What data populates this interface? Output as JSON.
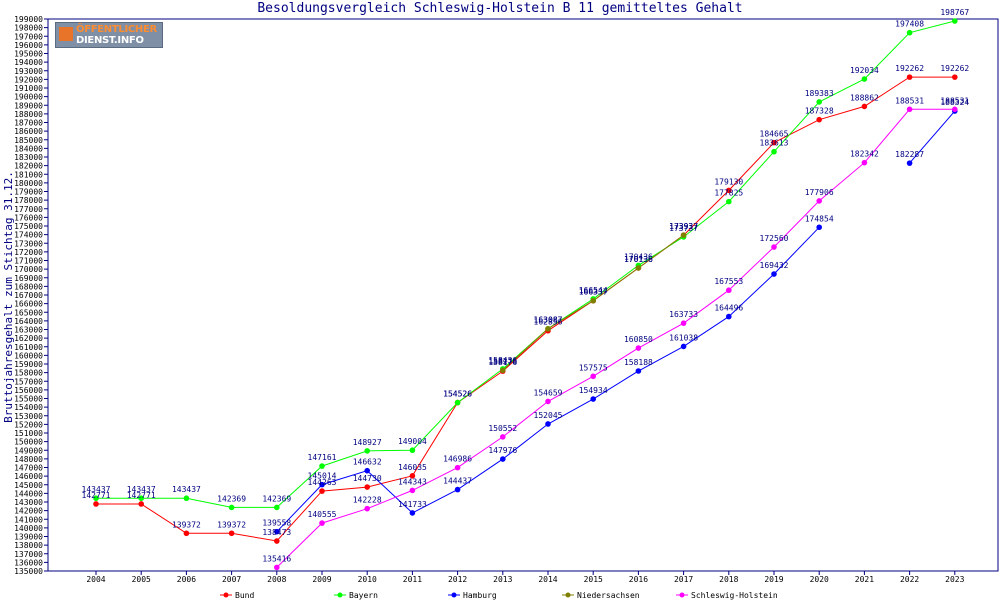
{
  "chart_data": {
    "type": "line",
    "title": "Besoldungsvergleich Schleswig-Holstein B 11 gemitteltes Gehalt",
    "ylabel": "Bruttojahresgehalt zum Stichtag 31.12.",
    "xlabel": "",
    "ylim": [
      135000,
      199000
    ],
    "y_tick_step": 1000,
    "grid": false,
    "legend_position": "bottom",
    "categories": [
      "2004",
      "2005",
      "2006",
      "2007",
      "2008",
      "2009",
      "2010",
      "2011",
      "2012",
      "2013",
      "2014",
      "2015",
      "2016",
      "2017",
      "2018",
      "2019",
      "2020",
      "2021",
      "2022",
      "2023"
    ],
    "series": [
      {
        "name": "Bund",
        "color": "#ff0000",
        "values": [
          142771,
          142771,
          139372,
          139372,
          138473,
          144263,
          144730,
          146035,
          154526,
          158176,
          162856,
          166337,
          170136,
          173937,
          179130,
          184665,
          187328,
          188862,
          192262,
          192262
        ]
      },
      {
        "name": "Bayern",
        "color": "#00ff00",
        "values": [
          143437,
          143437,
          143437,
          142369,
          142369,
          147161,
          148927,
          149004,
          154526,
          158436,
          163087,
          166544,
          170436,
          173737,
          177825,
          183613,
          189383,
          192034,
          197408,
          198767
        ]
      },
      {
        "name": "Hamburg",
        "color": "#0000ff",
        "values": [
          null,
          null,
          null,
          null,
          139558,
          145014,
          146632,
          141733,
          144437,
          147976,
          152045,
          154934,
          158188,
          161038,
          164496,
          169432,
          174854,
          null,
          182287,
          188324
        ]
      },
      {
        "name": "Niedersachsen",
        "color": "#808000",
        "values": [
          null,
          null,
          null,
          null,
          null,
          null,
          null,
          null,
          null,
          158276,
          163087,
          166337,
          170136,
          173937,
          null,
          null,
          null,
          null,
          null,
          null
        ]
      },
      {
        "name": "Schleswig-Holstein",
        "color": "#ff00ff",
        "values": [
          null,
          null,
          null,
          null,
          135416,
          140555,
          142228,
          144343,
          146986,
          150552,
          154659,
          157575,
          160850,
          163733,
          167553,
          172560,
          177906,
          182342,
          188531,
          188531
        ]
      }
    ]
  },
  "logo": {
    "line1": "ÖFFENTLICHER",
    "line2": "DIENST.INFO"
  }
}
